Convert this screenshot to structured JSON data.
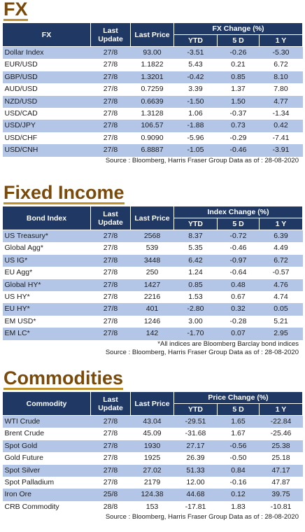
{
  "fx": {
    "title": "FX",
    "headers": {
      "name": "FX",
      "last_update": "Last Update",
      "last_price": "Last Price",
      "change": "FX Change (%)",
      "ytd": "YTD",
      "d5": "5 D",
      "y1": "1 Y"
    },
    "rows": [
      {
        "name": "Dollar Index",
        "update": "27/8",
        "price": "93.00",
        "ytd": "-3.51",
        "d5": "-0.26",
        "y1": "-5.30"
      },
      {
        "name": "EUR/USD",
        "update": "27/8",
        "price": "1.1822",
        "ytd": "5.43",
        "d5": "0.21",
        "y1": "6.72"
      },
      {
        "name": "GBP/USD",
        "update": "27/8",
        "price": "1.3201",
        "ytd": "-0.42",
        "d5": "0.85",
        "y1": "8.10"
      },
      {
        "name": "AUD/USD",
        "update": "27/8",
        "price": "0.7259",
        "ytd": "3.39",
        "d5": "1.37",
        "y1": "7.80"
      },
      {
        "name": "NZD/USD",
        "update": "27/8",
        "price": "0.6639",
        "ytd": "-1.50",
        "d5": "1.50",
        "y1": "4.77"
      },
      {
        "name": "USD/CAD",
        "update": "27/8",
        "price": "1.3128",
        "ytd": "1.06",
        "d5": "-0.37",
        "y1": "-1.34"
      },
      {
        "name": "USD/JPY",
        "update": "27/8",
        "price": "106.57",
        "ytd": "-1.88",
        "d5": "0.73",
        "y1": "0.42"
      },
      {
        "name": "USD/CHF",
        "update": "27/8",
        "price": "0.9090",
        "ytd": "-5.96",
        "d5": "-0.29",
        "y1": "-7.41"
      },
      {
        "name": "USD/CNH",
        "update": "27/8",
        "price": "6.8887",
        "ytd": "-1.05",
        "d5": "-0.46",
        "y1": "-3.91"
      }
    ],
    "source": "Source : Bloomberg, Harris Fraser Group Data as of : 28-08-2020"
  },
  "fixed_income": {
    "title": "Fixed Income",
    "headers": {
      "name": "Bond Index",
      "last_update": "Last Update",
      "last_price": "Last Price",
      "change": "Index Change (%)",
      "ytd": "YTD",
      "d5": "5 D",
      "y1": "1 Y"
    },
    "rows": [
      {
        "name": "US Treasury*",
        "update": "27/8",
        "price": "2568",
        "ytd": "8.37",
        "d5": "-0.72",
        "y1": "6.39"
      },
      {
        "name": "Global Agg*",
        "update": "27/8",
        "price": "539",
        "ytd": "5.35",
        "d5": "-0.46",
        "y1": "4.49"
      },
      {
        "name": "US IG*",
        "update": "27/8",
        "price": "3448",
        "ytd": "6.42",
        "d5": "-0.97",
        "y1": "6.72"
      },
      {
        "name": "EU Agg*",
        "update": "27/8",
        "price": "250",
        "ytd": "1.24",
        "d5": "-0.64",
        "y1": "-0.57"
      },
      {
        "name": "Global HY*",
        "update": "27/8",
        "price": "1427",
        "ytd": "0.85",
        "d5": "0.48",
        "y1": "4.76"
      },
      {
        "name": "US HY*",
        "update": "27/8",
        "price": "2216",
        "ytd": "1.53",
        "d5": "0.67",
        "y1": "4.74"
      },
      {
        "name": "EU HY*",
        "update": "27/8",
        "price": "401",
        "ytd": "-2.80",
        "d5": "0.32",
        "y1": "0.05"
      },
      {
        "name": "EM USD*",
        "update": "27/8",
        "price": "1246",
        "ytd": "3.00",
        "d5": "-0.28",
        "y1": "5.21"
      },
      {
        "name": "EM LC*",
        "update": "27/8",
        "price": "142",
        "ytd": "-1.70",
        "d5": "0.07",
        "y1": "2.95"
      }
    ],
    "note": "*All indices are Bloomberg Barclay bond indices",
    "source": "Source : Bloomberg, Harris Fraser Group Data as of : 28-08-2020"
  },
  "commodities": {
    "title": "Commodities",
    "headers": {
      "name": "Commodity",
      "last_update": "Last Update",
      "last_price": "Last Price",
      "change": "Price Change (%)",
      "ytd": "YTD",
      "d5": "5 D",
      "y1": "1 Y"
    },
    "rows": [
      {
        "name": "WTI Crude",
        "update": "27/8",
        "price": "43.04",
        "ytd": "-29.51",
        "d5": "1.65",
        "y1": "-22.84"
      },
      {
        "name": "Brent Crude",
        "update": "27/8",
        "price": "45.09",
        "ytd": "-31.68",
        "d5": "1.67",
        "y1": "-25.46"
      },
      {
        "name": "Spot Gold",
        "update": "27/8",
        "price": "1930",
        "ytd": "27.17",
        "d5": "-0.56",
        "y1": "25.38"
      },
      {
        "name": "Gold Future",
        "update": "27/8",
        "price": "1925",
        "ytd": "26.39",
        "d5": "-0.50",
        "y1": "25.18"
      },
      {
        "name": "Spot Silver",
        "update": "27/8",
        "price": "27.02",
        "ytd": "51.33",
        "d5": "0.84",
        "y1": "47.17"
      },
      {
        "name": "Spot Palladium",
        "update": "27/8",
        "price": "2179",
        "ytd": "12.00",
        "d5": "-0.16",
        "y1": "47.87"
      },
      {
        "name": "Iron Ore",
        "update": "25/8",
        "price": "124.38",
        "ytd": "44.68",
        "d5": "0.12",
        "y1": "39.75"
      },
      {
        "name": "CRB Commodity",
        "update": "28/8",
        "price": "153",
        "ytd": "-17.81",
        "d5": "1.83",
        "y1": "-10.81"
      }
    ],
    "source": "Source : Bloomberg, Harris Fraser Group Data as of : 28-08-2020"
  },
  "colors": {
    "header_bg": "#1f3864",
    "alt_row": "#b4c6e7",
    "title": "#7a4a0a",
    "title_underline": "#c0902a"
  }
}
